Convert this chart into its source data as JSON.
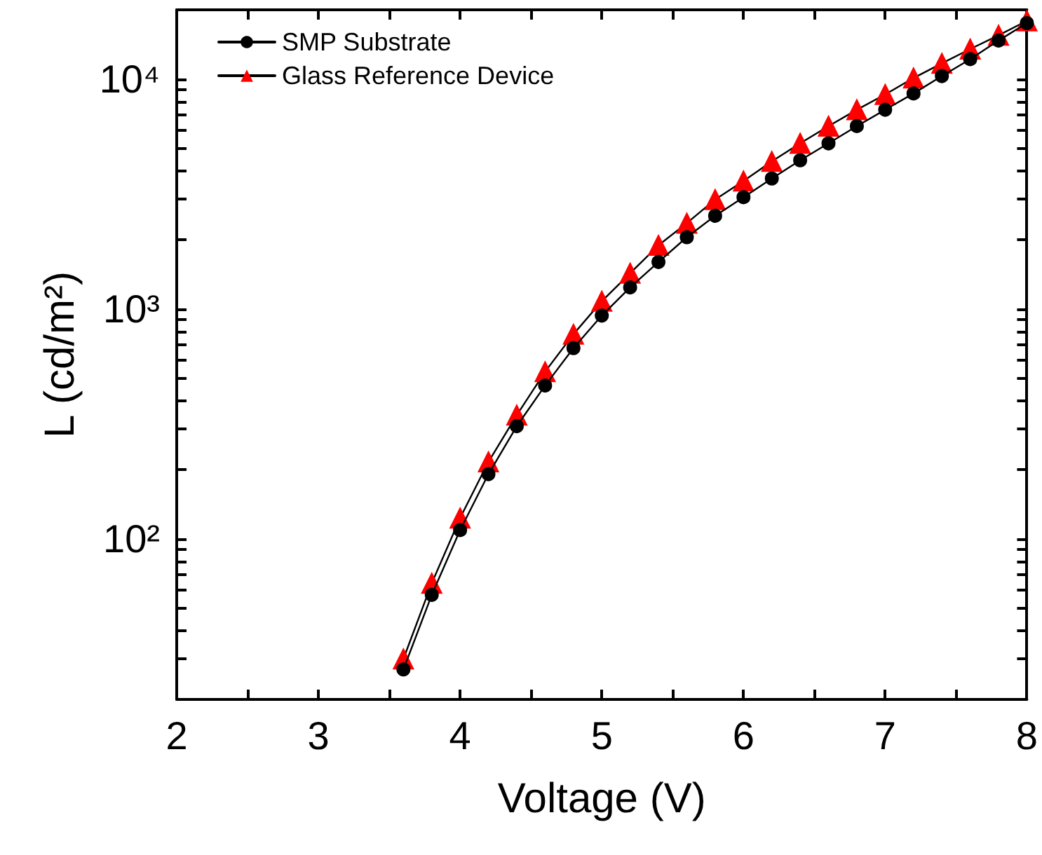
{
  "chart_data": {
    "type": "line",
    "xlabel": "Voltage (V)",
    "ylabel": "L (cd/m²)",
    "x": [
      3.6,
      3.8,
      4.0,
      4.2,
      4.4,
      4.6,
      4.8,
      5.0,
      5.2,
      5.4,
      5.6,
      5.8,
      6.0,
      6.2,
      6.4,
      6.6,
      6.8,
      7.0,
      7.2,
      7.4,
      7.6,
      7.8,
      8.0
    ],
    "series": [
      {
        "name": "SMP Substrate",
        "color": "#000000",
        "marker": "circle",
        "values": [
          27,
          57,
          109,
          191,
          309,
          464,
          675,
          935,
          1240,
          1600,
          2050,
          2540,
          3060,
          3690,
          4430,
          5250,
          6240,
          7350,
          8650,
          10300,
          12200,
          14700,
          17500
        ]
      },
      {
        "name": "Glass Reference Device",
        "color": "#ff0000",
        "marker": "triangle",
        "values": [
          30,
          64,
          123,
          216,
          345,
          533,
          776,
          1080,
          1430,
          1890,
          2360,
          2990,
          3600,
          4380,
          5250,
          6240,
          7350,
          8570,
          10100,
          11700,
          13500,
          15500,
          17900
        ]
      }
    ],
    "xlim": [
      2,
      8
    ],
    "xticks": [
      2,
      {
        "value": 2.5,
        "label": null
      },
      3,
      {
        "value": 3.5,
        "label": null
      },
      4,
      {
        "value": 4.5,
        "label": null
      },
      5,
      {
        "value": 5.5,
        "label": null
      },
      6,
      {
        "value": 6.5,
        "label": null
      },
      7,
      {
        "value": 7.5,
        "label": null
      },
      8
    ],
    "ylim": [
      20,
      20000
    ],
    "log": "y",
    "yticks": [
      {
        "value": 20,
        "label": null
      },
      {
        "value": 30,
        "label": null
      },
      {
        "value": 40,
        "label": null
      },
      {
        "value": 50,
        "label": null
      },
      {
        "value": 60,
        "label": null
      },
      {
        "value": 70,
        "label": null
      },
      {
        "value": 80,
        "label": null
      },
      {
        "value": 90,
        "label": null
      },
      {
        "value": 100,
        "label": "10²"
      },
      {
        "value": 200,
        "label": null
      },
      {
        "value": 300,
        "label": null
      },
      {
        "value": 400,
        "label": null
      },
      {
        "value": 500,
        "label": null
      },
      {
        "value": 600,
        "label": null
      },
      {
        "value": 700,
        "label": null
      },
      {
        "value": 800,
        "label": null
      },
      {
        "value": 900,
        "label": null
      },
      {
        "value": 1000,
        "label": "10³"
      },
      {
        "value": 2000,
        "label": null
      },
      {
        "value": 3000,
        "label": null
      },
      {
        "value": 4000,
        "label": null
      },
      {
        "value": 5000,
        "label": null
      },
      {
        "value": 6000,
        "label": null
      },
      {
        "value": 7000,
        "label": null
      },
      {
        "value": 8000,
        "label": null
      },
      {
        "value": 9000,
        "label": null
      },
      {
        "value": 10000,
        "label": "10⁴"
      },
      {
        "value": 20000,
        "label": null
      }
    ],
    "grid": false,
    "legend": "top left",
    "line_style": "solid"
  }
}
